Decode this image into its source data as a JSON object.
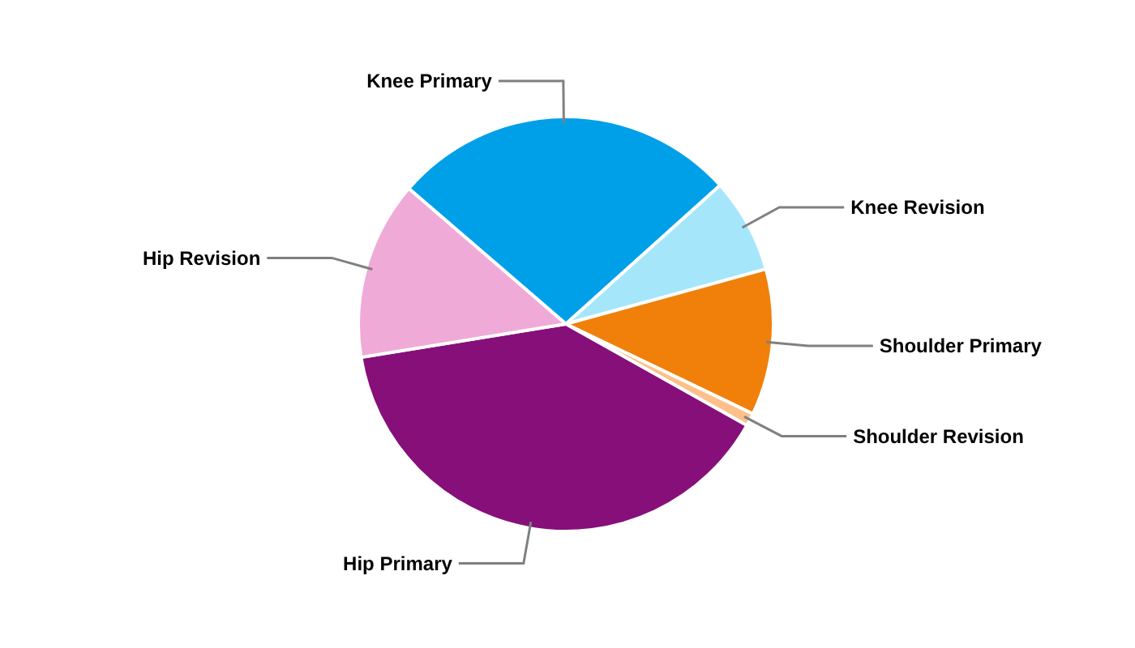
{
  "chart_data": {
    "type": "pie",
    "categories": [
      "Knee Primary",
      "Knee Revision",
      "Shoulder Primary",
      "Shoulder Revision",
      "Hip Primary",
      "Hip Revision"
    ],
    "values": [
      27.0,
      7.4,
      11.4,
      1.0,
      39.3,
      13.9
    ],
    "colors": [
      "#00a0e9",
      "#a6e6fb",
      "#f0800a",
      "#fdc08a",
      "#870f7a",
      "#f0aad8"
    ]
  }
}
